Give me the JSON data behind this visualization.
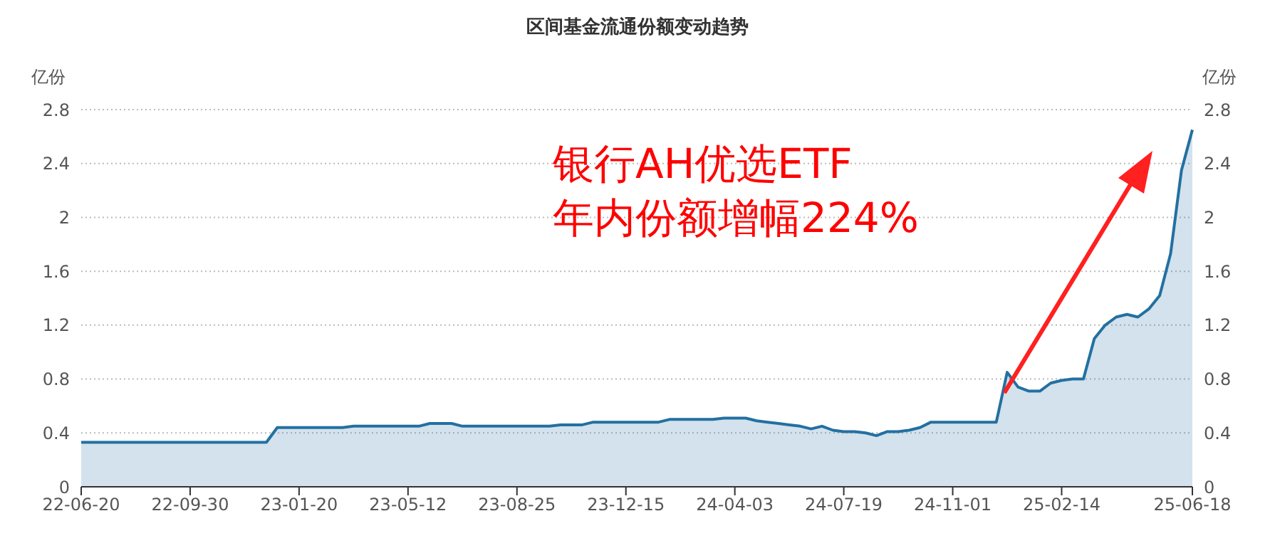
{
  "chart_data": {
    "type": "area",
    "title": "区间基金流通份额变动趋势",
    "ylabel": "亿份",
    "y2label": "亿份",
    "categories": [
      "22-06-20",
      null,
      null,
      null,
      null,
      null,
      null,
      null,
      null,
      null,
      "22-09-30",
      null,
      null,
      null,
      null,
      null,
      null,
      null,
      null,
      null,
      "23-01-20",
      null,
      null,
      null,
      null,
      null,
      null,
      null,
      null,
      null,
      "23-05-12",
      null,
      null,
      null,
      null,
      null,
      null,
      null,
      null,
      null,
      "23-08-25",
      null,
      null,
      null,
      null,
      null,
      null,
      null,
      null,
      null,
      "23-12-15",
      null,
      null,
      null,
      null,
      null,
      null,
      null,
      null,
      null,
      "24-04-03",
      null,
      null,
      null,
      null,
      null,
      null,
      null,
      null,
      null,
      "24-07-19",
      null,
      null,
      null,
      null,
      null,
      null,
      null,
      null,
      null,
      "24-11-01",
      null,
      null,
      null,
      null,
      null,
      null,
      null,
      null,
      null,
      "25-02-14",
      null,
      null,
      null,
      null,
      null,
      null,
      null,
      null,
      null,
      null,
      null,
      "25-06-18"
    ],
    "series": [
      {
        "color": "#2370a1",
        "values": [
          0.33,
          0.33,
          0.33,
          0.33,
          0.33,
          0.33,
          0.33,
          0.33,
          0.33,
          0.33,
          0.33,
          0.33,
          0.33,
          0.33,
          0.33,
          0.33,
          0.33,
          0.33,
          0.44,
          0.44,
          0.44,
          0.44,
          0.44,
          0.44,
          0.44,
          0.45,
          0.45,
          0.45,
          0.45,
          0.45,
          0.45,
          0.45,
          0.47,
          0.47,
          0.47,
          0.45,
          0.45,
          0.45,
          0.45,
          0.45,
          0.45,
          0.45,
          0.45,
          0.45,
          0.46,
          0.46,
          0.46,
          0.48,
          0.48,
          0.48,
          0.48,
          0.48,
          0.48,
          0.48,
          0.5,
          0.5,
          0.5,
          0.5,
          0.5,
          0.51,
          0.51,
          0.51,
          0.49,
          0.48,
          0.47,
          0.46,
          0.45,
          0.43,
          0.45,
          0.42,
          0.41,
          0.41,
          0.4,
          0.38,
          0.41,
          0.41,
          0.42,
          0.44,
          0.48,
          0.48,
          0.48,
          0.48,
          0.48,
          0.48,
          0.48,
          0.85,
          0.74,
          0.71,
          0.71,
          0.77,
          0.79,
          0.8,
          0.8,
          1.1,
          1.2,
          1.26,
          1.28,
          1.26,
          1.32,
          1.42,
          1.73,
          2.35,
          2.65
        ]
      }
    ],
    "ylim": [
      0,
      2.8
    ],
    "yticks": [
      0,
      0.4,
      0.8,
      1.2,
      1.6,
      2,
      2.4,
      2.8
    ],
    "y2lim": [
      0,
      2.8
    ],
    "y2ticks": [
      0,
      0.4,
      0.8,
      1.2,
      1.6,
      2,
      2.4,
      2.8
    ],
    "grid": "y",
    "annotations": [
      "银行AH优选ETF",
      "年内份额增幅224%"
    ]
  }
}
